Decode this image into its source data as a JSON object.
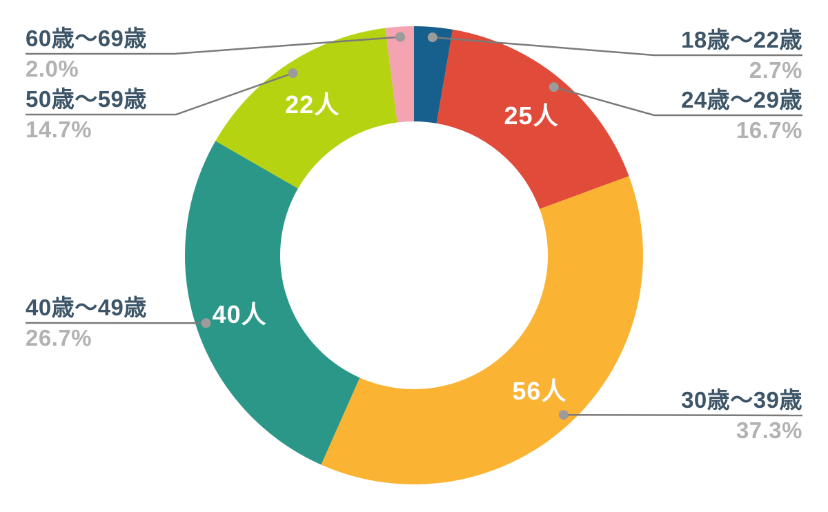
{
  "chart_data": {
    "type": "pie",
    "donut": true,
    "title": "",
    "start_angle_deg": 0,
    "direction": "clockwise",
    "inner_radius_ratio": 0.585,
    "legend_position": "callouts",
    "grid": false,
    "categories": [
      "18歳〜22歳",
      "24歳〜29歳",
      "30歳〜39歳",
      "40歳〜49歳",
      "50歳〜59歳",
      "60歳〜69歳"
    ],
    "values": [
      2.7,
      16.7,
      37.3,
      26.7,
      14.7,
      2.0
    ],
    "segments": [
      {
        "label": "18歳〜22歳",
        "percent": 2.7,
        "percent_label": "2.7%",
        "count_label": "",
        "color": "#175f8c"
      },
      {
        "label": "24歳〜29歳",
        "percent": 16.7,
        "percent_label": "16.7%",
        "count_label": "25人",
        "color": "#e04b3a"
      },
      {
        "label": "30歳〜39歳",
        "percent": 37.3,
        "percent_label": "37.3%",
        "count_label": "56人",
        "color": "#fbb334"
      },
      {
        "label": "40歳〜49歳",
        "percent": 26.7,
        "percent_label": "26.7%",
        "count_label": "40人",
        "color": "#2a9789"
      },
      {
        "label": "50歳〜59歳",
        "percent": 14.7,
        "percent_label": "14.7%",
        "count_label": "22人",
        "color": "#b5d311"
      },
      {
        "label": "60歳〜69歳",
        "percent": 2.0,
        "percent_label": "2.0%",
        "count_label": "",
        "color": "#f4a3b1"
      }
    ]
  },
  "styles": {
    "background": "#ffffff",
    "category_label_color": "#3d5568",
    "percent_label_color": "#b2b2b2",
    "leader_line_color": "#7a7a7a",
    "leader_dot_color": "#9b9b9b",
    "count_label_color": "#ffffff"
  }
}
